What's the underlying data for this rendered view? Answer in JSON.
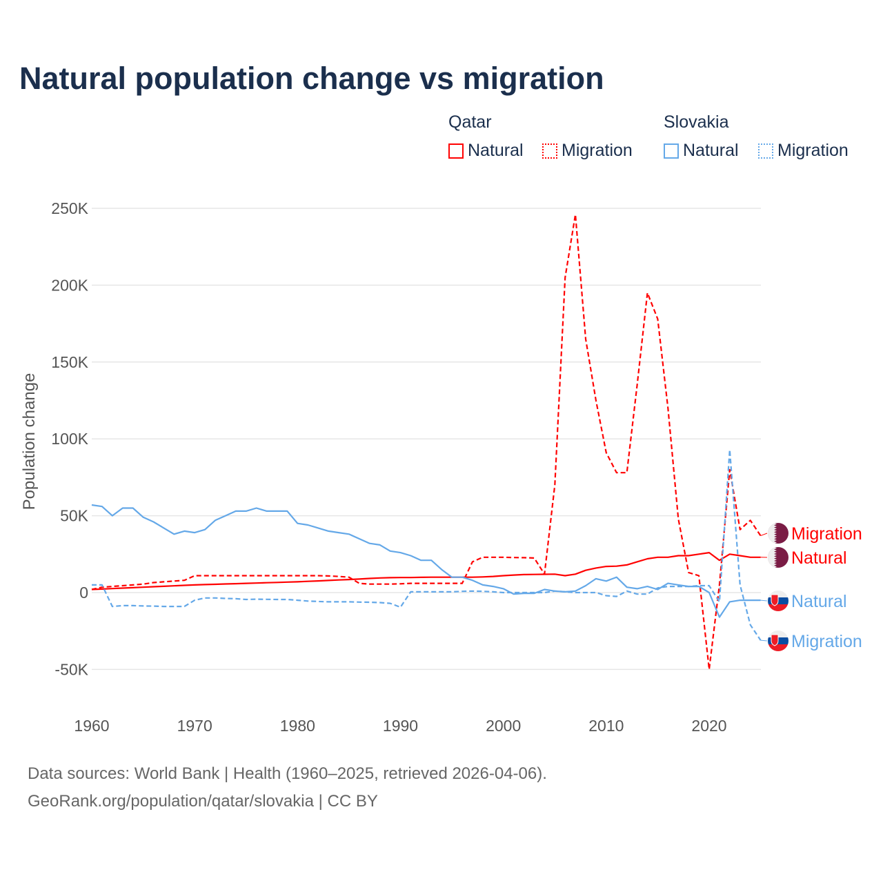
{
  "chart_data": {
    "type": "line",
    "title": "Natural population change vs migration",
    "ylabel": "Population change",
    "xlabel": "",
    "xlim": [
      1960,
      2025
    ],
    "ylim": [
      -75000,
      250000
    ],
    "x_ticks": [
      1960,
      1970,
      1980,
      1990,
      2000,
      2010,
      2020
    ],
    "x_tick_labels": [
      "1960",
      "1970",
      "1980",
      "1990",
      "2000",
      "2010",
      "2020"
    ],
    "y_ticks": [
      -50000,
      0,
      50000,
      100000,
      150000,
      200000,
      250000
    ],
    "y_tick_labels": [
      "-50K",
      "0",
      "50K",
      "100K",
      "150K",
      "200K",
      "250K"
    ],
    "grid": true,
    "legend": {
      "placement": "top-right",
      "groups": [
        {
          "country": "Qatar",
          "items": [
            "Natural",
            "Migration"
          ]
        },
        {
          "country": "Slovakia",
          "items": [
            "Natural",
            "Migration"
          ]
        }
      ]
    },
    "start_year": 1960,
    "series": [
      {
        "name": "Qatar Natural",
        "country": "Qatar",
        "label": "Natural",
        "color": "#ff0000",
        "dash": false,
        "values": [
          2000,
          2300,
          2600,
          2900,
          3200,
          3500,
          3800,
          4100,
          4400,
          4700,
          5000,
          5200,
          5400,
          5600,
          5800,
          6000,
          6200,
          6400,
          6600,
          6800,
          7000,
          7300,
          7600,
          7900,
          8200,
          8500,
          8800,
          9200,
          9500,
          9700,
          9800,
          9800,
          9900,
          10000,
          10000,
          10000,
          10000,
          10000,
          10200,
          10500,
          11000,
          11400,
          11700,
          11800,
          11900,
          12000,
          11000,
          12000,
          14500,
          16000,
          17000,
          17200,
          18000,
          20000,
          22000,
          23000,
          23000,
          24000,
          24000,
          25000,
          26000,
          21000,
          25000,
          24000,
          23000,
          23000
        ]
      },
      {
        "name": "Qatar Migration",
        "country": "Qatar",
        "label": "Migration",
        "color": "#ff0000",
        "dash": true,
        "values": [
          2000,
          3500,
          4000,
          4500,
          5000,
          5500,
          6500,
          7000,
          7500,
          8000,
          11000,
          11000,
          11000,
          11000,
          11000,
          11000,
          11000,
          11000,
          11000,
          11000,
          11000,
          11000,
          11000,
          10800,
          10500,
          10000,
          6000,
          5500,
          5500,
          5500,
          5700,
          6000,
          6000,
          6000,
          6000,
          6000,
          6000,
          20000,
          23000,
          23000,
          23000,
          22800,
          22700,
          22500,
          12000,
          70000,
          205000,
          246000,
          165000,
          125000,
          91000,
          78000,
          78000,
          135000,
          195000,
          178000,
          120000,
          48000,
          13000,
          11000,
          -50000,
          5000,
          80000,
          41000,
          47000,
          37000
        ]
      },
      {
        "name": "Slovakia Natural",
        "country": "Slovakia",
        "label": "Natural",
        "color": "#64a8e8",
        "dash": false,
        "values": [
          57000,
          56000,
          50000,
          55000,
          55000,
          49000,
          46000,
          42000,
          38000,
          40000,
          39000,
          41000,
          47000,
          50000,
          53000,
          53000,
          55000,
          53000,
          53000,
          53000,
          45000,
          44000,
          42000,
          40000,
          39000,
          38000,
          35000,
          32000,
          31000,
          27000,
          26000,
          24000,
          21000,
          21000,
          15000,
          10000,
          10000,
          8000,
          5000,
          4000,
          2500,
          -1000,
          -500,
          -500,
          2000,
          1000,
          500,
          1000,
          4500,
          9000,
          7500,
          10000,
          3500,
          2500,
          4000,
          2000,
          6000,
          5000,
          4000,
          4000,
          0,
          -16000,
          -6000,
          -5000,
          -5000,
          -5000
        ]
      },
      {
        "name": "Slovakia Migration",
        "country": "Slovakia",
        "label": "Migration",
        "color": "#64a8e8",
        "dash": true,
        "values": [
          5000,
          5000,
          -9000,
          -8500,
          -8500,
          -8700,
          -8800,
          -9000,
          -9000,
          -9000,
          -5000,
          -3500,
          -3500,
          -3800,
          -4000,
          -4500,
          -4300,
          -4400,
          -4500,
          -4500,
          -5000,
          -5500,
          -5800,
          -6000,
          -6000,
          -6000,
          -6200,
          -6300,
          -6500,
          -7000,
          -9500,
          500,
          500,
          500,
          500,
          500,
          800,
          1000,
          800,
          500,
          0,
          0,
          0,
          0,
          0,
          1000,
          500,
          0,
          0,
          0,
          -2000,
          -2500,
          1000,
          -1000,
          -1000,
          3000,
          4000,
          4000,
          4000,
          4500,
          4500,
          -6000,
          93000,
          5000,
          -21000,
          -31000
        ]
      }
    ]
  },
  "legend_titles": {
    "qatar": "Qatar",
    "slovakia": "Slovakia"
  },
  "legend_labels": {
    "natural": "Natural",
    "migration": "Migration"
  },
  "end_labels": {
    "qatar_migration": "Migration",
    "qatar_natural": "Natural",
    "slovakia_natural": "Natural",
    "slovakia_migration": "Migration"
  },
  "colors": {
    "qatar": "#ff0000",
    "slovakia": "#64a8e8",
    "qatar_flag": "#7a1c45",
    "slovakia_blue": "#0b4ea2",
    "slovakia_red": "#ee1c25",
    "title": "#1b2f4d"
  },
  "footer": {
    "line1": "Data sources: World Bank | Health (1960–2025, retrieved 2026-04-06).",
    "line2": "GeoRank.org/population/qatar/slovakia | CC BY"
  }
}
